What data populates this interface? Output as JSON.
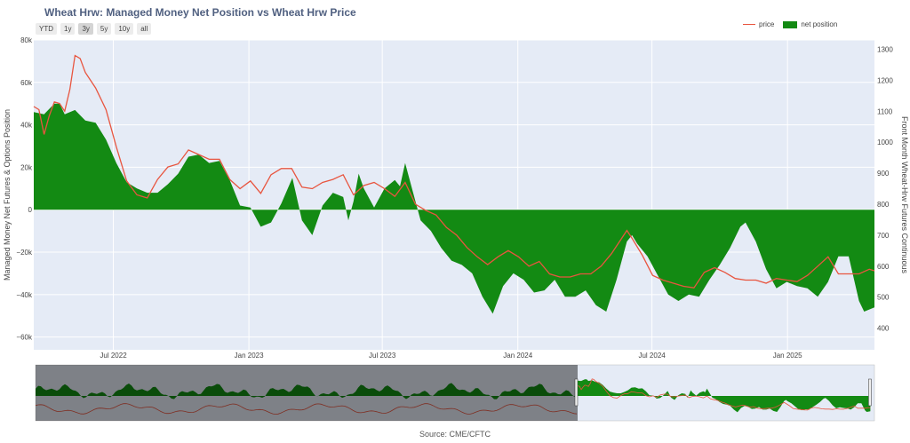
{
  "title": "Wheat Hrw: Managed Money Net Position vs Wheat Hrw Price",
  "source": "Source: CME/CFTC",
  "range_buttons": [
    "YTD",
    "1y",
    "3y",
    "5y",
    "10y",
    "all"
  ],
  "range_active": "3y",
  "legend": {
    "price": "price",
    "net_position": "net position"
  },
  "colors": {
    "price": "#e8553f",
    "net_position": "#138a13",
    "plot_bg": "#e5ebf6"
  },
  "chart_data": {
    "type": "area",
    "title": "Wheat Hrw: Managed Money Net Position vs Wheat Hrw Price",
    "xaxis": {
      "ticks": [
        "2022-07-01",
        "2023-01-01",
        "2023-07-01",
        "2024-01-01",
        "2024-07-01",
        "2025-01-01"
      ],
      "tick_labels": [
        "Jul 2022",
        "Jan 2023",
        "Jul 2023",
        "Jan 2024",
        "Jul 2024",
        "Jan 2025"
      ],
      "range": [
        "2022-03-15",
        "2025-04-29"
      ]
    },
    "y_left": {
      "label": "Managed Money Net Futures & Options Position",
      "range": [
        -66000,
        80000
      ],
      "ticks": [
        80000,
        60000,
        40000,
        20000,
        0,
        -20000,
        -40000,
        -60000
      ],
      "tick_labels": [
        "80k",
        "60k",
        "40k",
        "20k",
        "0",
        "−20k",
        "−40k",
        "−60k"
      ]
    },
    "y_right": {
      "label": "Front Month Wheat-Hrw Futures Continuous",
      "range": [
        330,
        1330
      ],
      "ticks": [
        1300,
        1200,
        1100,
        1000,
        900,
        800,
        700,
        600,
        500,
        400
      ],
      "tick_labels": [
        "1300",
        "1200",
        "1100",
        "1000",
        "900",
        "800",
        "700",
        "600",
        "500",
        "400"
      ]
    },
    "series": [
      {
        "name": "net position",
        "axis": "left",
        "style": "filled area",
        "points": [
          [
            "2022-03-15",
            46000
          ],
          [
            "2022-03-29",
            45000
          ],
          [
            "2022-04-12",
            50000
          ],
          [
            "2022-04-19",
            50000
          ],
          [
            "2022-04-26",
            45000
          ],
          [
            "2022-05-10",
            47000
          ],
          [
            "2022-05-24",
            42000
          ],
          [
            "2022-06-07",
            41000
          ],
          [
            "2022-06-21",
            33000
          ],
          [
            "2022-07-05",
            22000
          ],
          [
            "2022-07-19",
            13000
          ],
          [
            "2022-08-02",
            10000
          ],
          [
            "2022-08-16",
            8000
          ],
          [
            "2022-08-30",
            8000
          ],
          [
            "2022-09-13",
            12000
          ],
          [
            "2022-09-27",
            17000
          ],
          [
            "2022-10-11",
            25000
          ],
          [
            "2022-10-25",
            26000
          ],
          [
            "2022-11-08",
            22000
          ],
          [
            "2022-11-22",
            23000
          ],
          [
            "2022-12-06",
            14000
          ],
          [
            "2022-12-20",
            2000
          ],
          [
            "2023-01-03",
            1000
          ],
          [
            "2023-01-17",
            -8000
          ],
          [
            "2023-01-31",
            -6000
          ],
          [
            "2023-02-14",
            3000
          ],
          [
            "2023-03-01",
            15000
          ],
          [
            "2023-03-14",
            -5000
          ],
          [
            "2023-03-28",
            -12000
          ],
          [
            "2023-04-11",
            2000
          ],
          [
            "2023-04-25",
            8000
          ],
          [
            "2023-05-09",
            6000
          ],
          [
            "2023-05-16",
            -5000
          ],
          [
            "2023-05-23",
            4000
          ],
          [
            "2023-05-30",
            17000
          ],
          [
            "2023-06-06",
            10000
          ],
          [
            "2023-06-20",
            1000
          ],
          [
            "2023-07-04",
            10000
          ],
          [
            "2023-07-18",
            14000
          ],
          [
            "2023-07-25",
            11000
          ],
          [
            "2023-08-01",
            22000
          ],
          [
            "2023-08-08",
            13000
          ],
          [
            "2023-08-22",
            -5000
          ],
          [
            "2023-09-05",
            -10000
          ],
          [
            "2023-09-19",
            -18000
          ],
          [
            "2023-10-03",
            -24000
          ],
          [
            "2023-10-17",
            -26000
          ],
          [
            "2023-10-31",
            -30000
          ],
          [
            "2023-11-14",
            -41000
          ],
          [
            "2023-11-28",
            -49000
          ],
          [
            "2023-12-12",
            -36000
          ],
          [
            "2023-12-26",
            -30000
          ],
          [
            "2024-01-09",
            -33000
          ],
          [
            "2024-01-23",
            -39000
          ],
          [
            "2024-02-06",
            -38000
          ],
          [
            "2024-02-20",
            -33000
          ],
          [
            "2024-03-05",
            -41000
          ],
          [
            "2024-03-19",
            -41000
          ],
          [
            "2024-04-02",
            -38000
          ],
          [
            "2024-04-16",
            -45000
          ],
          [
            "2024-04-30",
            -48000
          ],
          [
            "2024-05-14",
            -33000
          ],
          [
            "2024-05-28",
            -15000
          ],
          [
            "2024-06-04",
            -12000
          ],
          [
            "2024-06-11",
            -16000
          ],
          [
            "2024-06-25",
            -22000
          ],
          [
            "2024-07-09",
            -31000
          ],
          [
            "2024-07-23",
            -40000
          ],
          [
            "2024-08-06",
            -43000
          ],
          [
            "2024-08-20",
            -40000
          ],
          [
            "2024-09-03",
            -41000
          ],
          [
            "2024-09-17",
            -33000
          ],
          [
            "2024-10-01",
            -26000
          ],
          [
            "2024-10-15",
            -18000
          ],
          [
            "2024-10-29",
            -8000
          ],
          [
            "2024-11-05",
            -6000
          ],
          [
            "2024-11-19",
            -15000
          ],
          [
            "2024-12-03",
            -28000
          ],
          [
            "2024-12-17",
            -37000
          ],
          [
            "2024-12-31",
            -34000
          ],
          [
            "2025-01-14",
            -36000
          ],
          [
            "2025-01-28",
            -37000
          ],
          [
            "2025-02-11",
            -41000
          ],
          [
            "2025-02-25",
            -34000
          ],
          [
            "2025-03-11",
            -22000
          ],
          [
            "2025-03-25",
            -22000
          ],
          [
            "2025-04-08",
            -43000
          ],
          [
            "2025-04-15",
            -48000
          ],
          [
            "2025-04-29",
            -46000
          ]
        ]
      },
      {
        "name": "price",
        "axis": "right",
        "style": "line",
        "points": [
          [
            "2022-03-15",
            1115
          ],
          [
            "2022-03-22",
            1105
          ],
          [
            "2022-03-29",
            1025
          ],
          [
            "2022-04-05",
            1085
          ],
          [
            "2022-04-12",
            1130
          ],
          [
            "2022-04-19",
            1125
          ],
          [
            "2022-04-26",
            1100
          ],
          [
            "2022-05-03",
            1170
          ],
          [
            "2022-05-10",
            1280
          ],
          [
            "2022-05-17",
            1270
          ],
          [
            "2022-05-24",
            1225
          ],
          [
            "2022-06-07",
            1175
          ],
          [
            "2022-06-21",
            1105
          ],
          [
            "2022-07-05",
            985
          ],
          [
            "2022-07-19",
            875
          ],
          [
            "2022-08-02",
            830
          ],
          [
            "2022-08-16",
            820
          ],
          [
            "2022-08-30",
            880
          ],
          [
            "2022-09-13",
            920
          ],
          [
            "2022-09-27",
            930
          ],
          [
            "2022-10-11",
            975
          ],
          [
            "2022-10-25",
            960
          ],
          [
            "2022-11-08",
            945
          ],
          [
            "2022-11-22",
            945
          ],
          [
            "2022-12-06",
            880
          ],
          [
            "2022-12-20",
            850
          ],
          [
            "2023-01-03",
            875
          ],
          [
            "2023-01-17",
            835
          ],
          [
            "2023-01-31",
            895
          ],
          [
            "2023-02-14",
            915
          ],
          [
            "2023-02-28",
            915
          ],
          [
            "2023-03-14",
            855
          ],
          [
            "2023-03-28",
            850
          ],
          [
            "2023-04-11",
            870
          ],
          [
            "2023-04-25",
            880
          ],
          [
            "2023-05-09",
            895
          ],
          [
            "2023-05-23",
            830
          ],
          [
            "2023-06-06",
            860
          ],
          [
            "2023-06-20",
            870
          ],
          [
            "2023-07-04",
            850
          ],
          [
            "2023-07-18",
            825
          ],
          [
            "2023-08-01",
            870
          ],
          [
            "2023-08-15",
            800
          ],
          [
            "2023-08-29",
            780
          ],
          [
            "2023-09-12",
            765
          ],
          [
            "2023-09-26",
            725
          ],
          [
            "2023-10-10",
            700
          ],
          [
            "2023-10-24",
            660
          ],
          [
            "2023-11-07",
            630
          ],
          [
            "2023-11-21",
            605
          ],
          [
            "2023-12-05",
            630
          ],
          [
            "2023-12-19",
            650
          ],
          [
            "2024-01-02",
            630
          ],
          [
            "2024-01-16",
            600
          ],
          [
            "2024-01-30",
            615
          ],
          [
            "2024-02-13",
            575
          ],
          [
            "2024-02-27",
            565
          ],
          [
            "2024-03-12",
            565
          ],
          [
            "2024-03-26",
            575
          ],
          [
            "2024-04-09",
            575
          ],
          [
            "2024-04-23",
            600
          ],
          [
            "2024-05-07",
            640
          ],
          [
            "2024-05-21",
            690
          ],
          [
            "2024-05-28",
            715
          ],
          [
            "2024-06-04",
            690
          ],
          [
            "2024-06-18",
            635
          ],
          [
            "2024-07-02",
            570
          ],
          [
            "2024-07-16",
            555
          ],
          [
            "2024-07-30",
            545
          ],
          [
            "2024-08-13",
            535
          ],
          [
            "2024-08-27",
            530
          ],
          [
            "2024-09-10",
            580
          ],
          [
            "2024-09-24",
            595
          ],
          [
            "2024-10-08",
            580
          ],
          [
            "2024-10-22",
            560
          ],
          [
            "2024-11-05",
            555
          ],
          [
            "2024-11-19",
            555
          ],
          [
            "2024-12-03",
            545
          ],
          [
            "2024-12-17",
            560
          ],
          [
            "2024-12-31",
            555
          ],
          [
            "2025-01-14",
            550
          ],
          [
            "2025-01-28",
            570
          ],
          [
            "2025-02-11",
            600
          ],
          [
            "2025-02-25",
            630
          ],
          [
            "2025-03-11",
            575
          ],
          [
            "2025-03-25",
            575
          ],
          [
            "2025-04-08",
            575
          ],
          [
            "2025-04-22",
            590
          ],
          [
            "2025-04-29",
            585
          ]
        ]
      }
    ],
    "rangeslider": {
      "full_range": [
        "2016-06-01",
        "2025-05-15"
      ],
      "visible": [
        "2022-03-15",
        "2025-04-29"
      ]
    }
  }
}
